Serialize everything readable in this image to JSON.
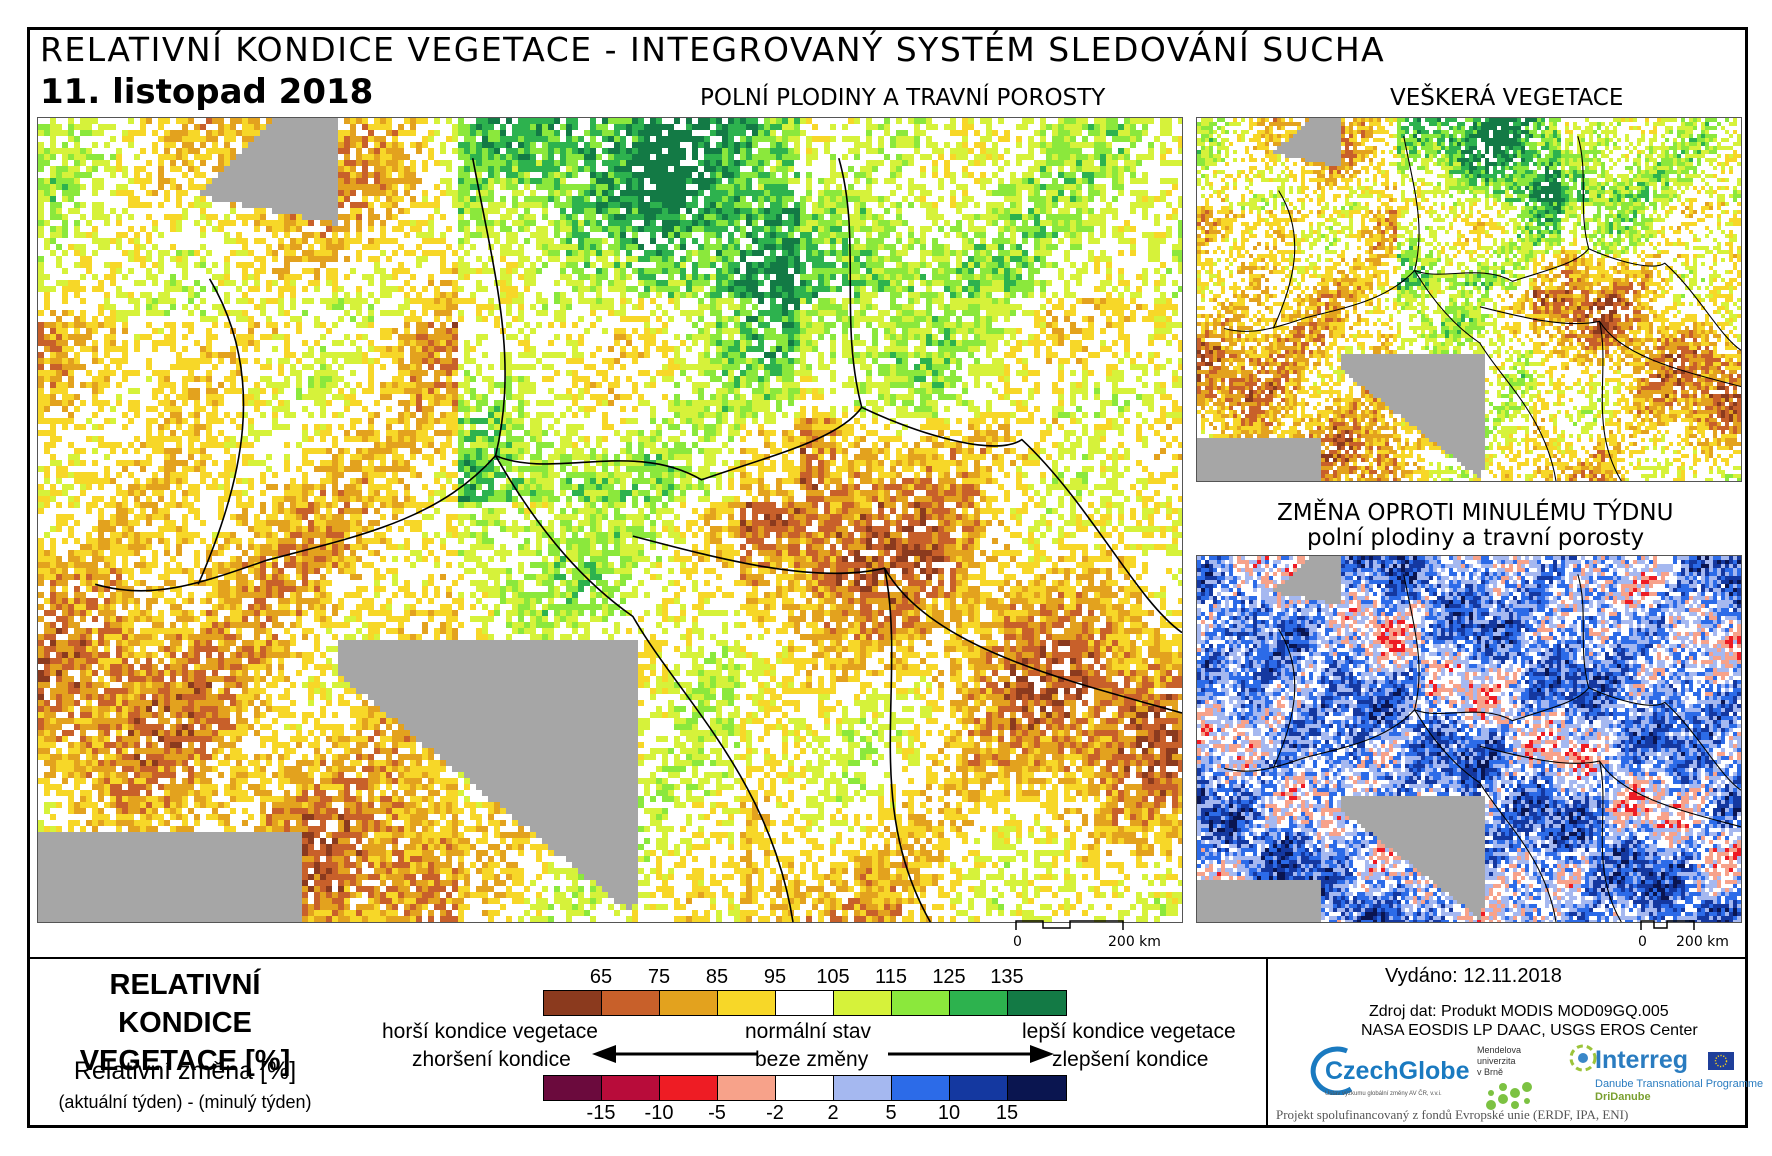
{
  "header": {
    "title": "RELATIVNÍ KONDICE VEGETACE - INTEGROVANÝ SYSTÉM SLEDOVÁNÍ SUCHA",
    "date": "11. listopad 2018"
  },
  "panels": {
    "main_title": "POLNÍ PLODINY A TRAVNÍ POROSTY",
    "all_veg_title": "VEŠKERÁ VEGETACE",
    "change_title_1": "ZMĚNA OPROTI MINULÉMU TÝDNU",
    "change_title_2": "polní plodiny a travní porosty"
  },
  "scalebar": {
    "zero": "0",
    "dist": "200 km"
  },
  "legend": {
    "title_line1": "RELATIVNÍ KONDICE",
    "title_line2": "VEGETACE [%]",
    "sub_title": "Relativní změna [%]",
    "sub_note": "(aktuální týden) - (minulý týden)",
    "top_ticks": [
      "65",
      "75",
      "85",
      "95",
      "105",
      "115",
      "125",
      "135"
    ],
    "bottom_ticks": [
      "-15",
      "-10",
      "-5",
      "-2",
      "2",
      "5",
      "10",
      "15"
    ],
    "top_colors": [
      "#8b3a1e",
      "#c8602a",
      "#e3a21e",
      "#f7d728",
      "#ffffff",
      "#d6f23a",
      "#8be83c",
      "#2db24e",
      "#137a45"
    ],
    "bottom_colors": [
      "#6b0a3d",
      "#b80c3a",
      "#ee1c24",
      "#f7a28a",
      "#ffffff",
      "#a5b8f0",
      "#2c6be8",
      "#1438a0",
      "#0a1550"
    ],
    "left_top": "horší kondice vegetace",
    "left_bottom": "zhoršení kondice",
    "mid_top": "normální stav",
    "mid_bottom": "beze změny",
    "right_top": "lepší kondice vegetace",
    "right_bottom": "zlepšení kondice"
  },
  "info": {
    "issued": "Vydáno: 12.11.2018",
    "source_1": "Zdroj dat: Produkt MODIS MOD09GQ.005",
    "source_2": "NASA EOSDIS LP DAAC, USGS EROS Center",
    "logo_czechglobe": "CzechGlobe",
    "logo_czechglobe_sub": "Ústav výzkumu globální změny AV ČR, v.v.i.",
    "logo_mendel_1": "Mendelova",
    "logo_mendel_2": "univerzita",
    "logo_mendel_3": "v Brně",
    "logo_interreg": "Interreg",
    "logo_interreg_sub1": "Danube Transnational Programme",
    "logo_interreg_sub2": "DriDanube",
    "funding": "Projekt spolufinancovaný z fondů Evropské unie (ERDF, IPA, ENI)"
  }
}
